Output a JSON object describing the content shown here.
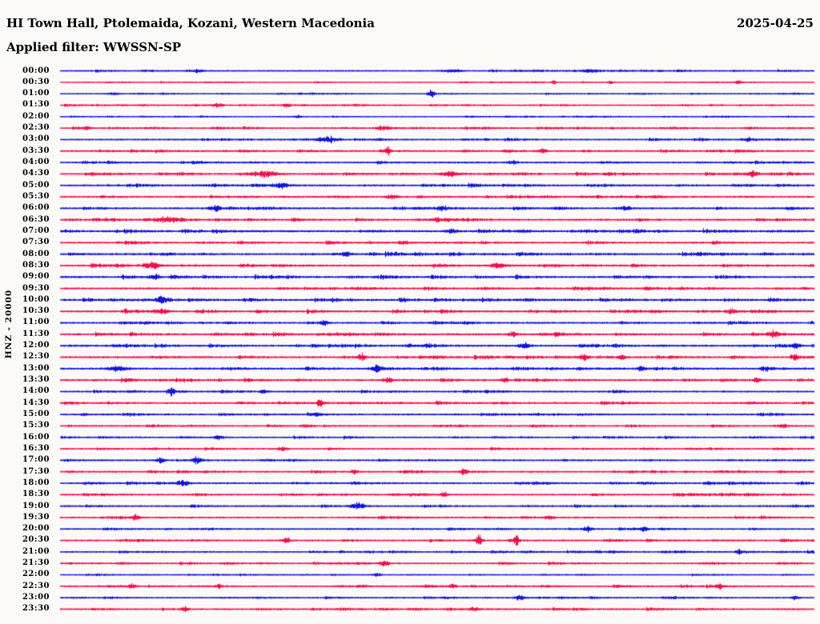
{
  "header": {
    "title": "HI Town Hall, Ptolemaida, Kozani, Western Macedonia",
    "date": "2025-04-25",
    "filter": "Applied filter: WWSSN-SP"
  },
  "y_axis": {
    "label": "HNZ - 20000"
  },
  "chart_data": {
    "type": "line",
    "subtype": "helicorder-seismogram",
    "station": "HI Town Hall, Ptolemaida, Kozani, Western Macedonia",
    "channel_scale_label": "HNZ - 20000",
    "date": "2025-04-25",
    "applied_filter": "WWSSN-SP",
    "minutes_per_row": 30,
    "row_count": 48,
    "row_labels": [
      "00:00",
      "00:30",
      "01:00",
      "01:30",
      "02:00",
      "02:30",
      "03:00",
      "03:30",
      "04:00",
      "04:30",
      "05:00",
      "05:30",
      "06:00",
      "06:30",
      "07:00",
      "07:30",
      "08:00",
      "08:30",
      "09:00",
      "09:30",
      "10:00",
      "10:30",
      "11:00",
      "11:30",
      "12:00",
      "12:30",
      "13:00",
      "13:30",
      "14:00",
      "14:30",
      "15:00",
      "15:30",
      "16:00",
      "16:30",
      "17:00",
      "17:30",
      "18:00",
      "18:30",
      "19:00",
      "19:30",
      "20:00",
      "20:30",
      "21:00",
      "21:30",
      "22:00",
      "22:30",
      "23:00",
      "23:30"
    ],
    "trace_colors": {
      "even_rows": "#1212d9",
      "odd_rows": "#f20d4b"
    },
    "background": "#fbfaf9",
    "grid": false,
    "row_noise_level": [
      0.7,
      0.35,
      0.45,
      0.55,
      0.45,
      0.75,
      0.85,
      0.95,
      0.95,
      1.05,
      1.05,
      0.95,
      1.1,
      1.15,
      1.25,
      1.05,
      1.25,
      1.15,
      1.15,
      1.05,
      1.25,
      1.15,
      1.05,
      1.15,
      1.15,
      1.15,
      1.15,
      1.05,
      1.0,
      1.0,
      0.9,
      0.8,
      0.75,
      0.75,
      0.9,
      0.9,
      0.95,
      0.9,
      0.9,
      0.9,
      0.8,
      0.9,
      0.8,
      0.8,
      0.5,
      0.8,
      0.7,
      0.9
    ],
    "events": [
      {
        "row": 0,
        "t": 0.18,
        "a": 1.6,
        "w": 6
      },
      {
        "row": 0,
        "t": 0.52,
        "a": 1.4,
        "w": 8
      },
      {
        "row": 0,
        "t": 0.7,
        "a": 1.5,
        "w": 5
      },
      {
        "row": 1,
        "t": 0.655,
        "a": 1.5,
        "w": 2
      },
      {
        "row": 1,
        "t": 0.73,
        "a": 1.3,
        "w": 2
      },
      {
        "row": 1,
        "t": 0.9,
        "a": 1.5,
        "w": 3
      },
      {
        "row": 2,
        "t": 0.07,
        "a": 1.2,
        "w": 5
      },
      {
        "row": 2,
        "t": 0.492,
        "a": 3.2,
        "w": 3
      },
      {
        "row": 3,
        "t": 0.21,
        "a": 1.8,
        "w": 5
      },
      {
        "row": 3,
        "t": 0.3,
        "a": 1.6,
        "w": 3
      },
      {
        "row": 4,
        "t": 0.315,
        "a": 1.6,
        "w": 3
      },
      {
        "row": 5,
        "t": 0.035,
        "a": 2.2,
        "w": 3
      },
      {
        "row": 5,
        "t": 0.43,
        "a": 1.5,
        "w": 6
      },
      {
        "row": 6,
        "t": 0.355,
        "a": 3.2,
        "w": 9
      },
      {
        "row": 6,
        "t": 0.91,
        "a": 2.2,
        "w": 4
      },
      {
        "row": 7,
        "t": 0.435,
        "a": 3.8,
        "w": 2.5
      },
      {
        "row": 7,
        "t": 0.64,
        "a": 2.0,
        "w": 4
      },
      {
        "row": 8,
        "t": 0.6,
        "a": 2.0,
        "w": 4
      },
      {
        "row": 9,
        "t": 0.27,
        "a": 2.8,
        "w": 12
      },
      {
        "row": 9,
        "t": 0.515,
        "a": 2.8,
        "w": 6
      },
      {
        "row": 9,
        "t": 0.92,
        "a": 3.2,
        "w": 5
      },
      {
        "row": 10,
        "t": 0.295,
        "a": 2.2,
        "w": 5
      },
      {
        "row": 11,
        "t": 0.44,
        "a": 2.0,
        "w": 5
      },
      {
        "row": 12,
        "t": 0.207,
        "a": 3.8,
        "w": 3
      },
      {
        "row": 12,
        "t": 0.505,
        "a": 2.4,
        "w": 4
      },
      {
        "row": 12,
        "t": 0.75,
        "a": 2.0,
        "w": 4
      },
      {
        "row": 13,
        "t": 0.143,
        "a": 3.2,
        "w": 6
      },
      {
        "row": 13,
        "t": 0.5,
        "a": 2.0,
        "w": 5
      },
      {
        "row": 14,
        "t": 0.52,
        "a": 2.0,
        "w": 5
      },
      {
        "row": 15,
        "t": 0.455,
        "a": 2.0,
        "w": 4
      },
      {
        "row": 16,
        "t": 0.38,
        "a": 2.0,
        "w": 5
      },
      {
        "row": 17,
        "t": 0.122,
        "a": 2.8,
        "w": 6
      },
      {
        "row": 17,
        "t": 0.578,
        "a": 3.4,
        "w": 4
      },
      {
        "row": 18,
        "t": 0.125,
        "a": 2.4,
        "w": 4
      },
      {
        "row": 20,
        "t": 0.135,
        "a": 2.6,
        "w": 6
      },
      {
        "row": 21,
        "t": 0.133,
        "a": 2.6,
        "w": 6
      },
      {
        "row": 21,
        "t": 0.89,
        "a": 2.2,
        "w": 4
      },
      {
        "row": 22,
        "t": 0.35,
        "a": 2.0,
        "w": 3
      },
      {
        "row": 23,
        "t": 0.6,
        "a": 2.2,
        "w": 4
      },
      {
        "row": 23,
        "t": 0.945,
        "a": 2.4,
        "w": 4
      },
      {
        "row": 24,
        "t": 0.616,
        "a": 3.0,
        "w": 5
      },
      {
        "row": 24,
        "t": 0.975,
        "a": 2.4,
        "w": 4
      },
      {
        "row": 25,
        "t": 0.4,
        "a": 4.6,
        "w": 3
      },
      {
        "row": 25,
        "t": 0.695,
        "a": 3.2,
        "w": 4
      },
      {
        "row": 25,
        "t": 0.745,
        "a": 2.8,
        "w": 3
      },
      {
        "row": 25,
        "t": 0.975,
        "a": 2.6,
        "w": 3
      },
      {
        "row": 26,
        "t": 0.075,
        "a": 2.6,
        "w": 8
      },
      {
        "row": 26,
        "t": 0.42,
        "a": 2.4,
        "w": 4
      },
      {
        "row": 26,
        "t": 0.77,
        "a": 2.2,
        "w": 3
      },
      {
        "row": 26,
        "t": 0.935,
        "a": 2.8,
        "w": 4
      },
      {
        "row": 27,
        "t": 0.435,
        "a": 2.8,
        "w": 4
      },
      {
        "row": 27,
        "t": 0.59,
        "a": 2.8,
        "w": 3
      },
      {
        "row": 27,
        "t": 0.925,
        "a": 2.8,
        "w": 3
      },
      {
        "row": 28,
        "t": 0.148,
        "a": 3.2,
        "w": 3
      },
      {
        "row": 28,
        "t": 0.27,
        "a": 3.0,
        "w": 3
      },
      {
        "row": 29,
        "t": 0.345,
        "a": 4.8,
        "w": 2.5
      },
      {
        "row": 30,
        "t": 0.34,
        "a": 1.8,
        "w": 4
      },
      {
        "row": 31,
        "t": 0.96,
        "a": 2.0,
        "w": 3
      },
      {
        "row": 32,
        "t": 0.21,
        "a": 1.8,
        "w": 4
      },
      {
        "row": 33,
        "t": 0.295,
        "a": 2.0,
        "w": 4
      },
      {
        "row": 34,
        "t": 0.133,
        "a": 2.6,
        "w": 4
      },
      {
        "row": 34,
        "t": 0.182,
        "a": 3.0,
        "w": 4
      },
      {
        "row": 35,
        "t": 0.39,
        "a": 2.2,
        "w": 3
      },
      {
        "row": 35,
        "t": 0.535,
        "a": 2.6,
        "w": 3
      },
      {
        "row": 36,
        "t": 0.162,
        "a": 3.6,
        "w": 5
      },
      {
        "row": 37,
        "t": 0.51,
        "a": 2.0,
        "w": 4
      },
      {
        "row": 38,
        "t": 0.395,
        "a": 3.8,
        "w": 6
      },
      {
        "row": 39,
        "t": 0.1,
        "a": 2.8,
        "w": 3
      },
      {
        "row": 39,
        "t": 0.65,
        "a": 2.0,
        "w": 4
      },
      {
        "row": 40,
        "t": 0.7,
        "a": 2.8,
        "w": 4
      },
      {
        "row": 40,
        "t": 0.775,
        "a": 2.2,
        "w": 3
      },
      {
        "row": 41,
        "t": 0.3,
        "a": 2.2,
        "w": 4
      },
      {
        "row": 41,
        "t": 0.555,
        "a": 5.5,
        "w": 3
      },
      {
        "row": 41,
        "t": 0.605,
        "a": 4.0,
        "w": 2.5
      },
      {
        "row": 42,
        "t": 0.9,
        "a": 2.2,
        "w": 3
      },
      {
        "row": 43,
        "t": 0.43,
        "a": 2.8,
        "w": 4
      },
      {
        "row": 44,
        "t": 0.42,
        "a": 1.4,
        "w": 4
      },
      {
        "row": 45,
        "t": 0.095,
        "a": 2.6,
        "w": 3
      },
      {
        "row": 45,
        "t": 0.21,
        "a": 2.6,
        "w": 2.5
      },
      {
        "row": 45,
        "t": 0.52,
        "a": 2.2,
        "w": 3
      },
      {
        "row": 45,
        "t": 0.875,
        "a": 2.8,
        "w": 3
      },
      {
        "row": 46,
        "t": 0.61,
        "a": 2.4,
        "w": 4
      },
      {
        "row": 46,
        "t": 0.975,
        "a": 2.6,
        "w": 3
      },
      {
        "row": 47,
        "t": 0.165,
        "a": 3.0,
        "w": 2.5
      },
      {
        "row": 47,
        "t": 0.55,
        "a": 2.0,
        "w": 4
      }
    ]
  }
}
